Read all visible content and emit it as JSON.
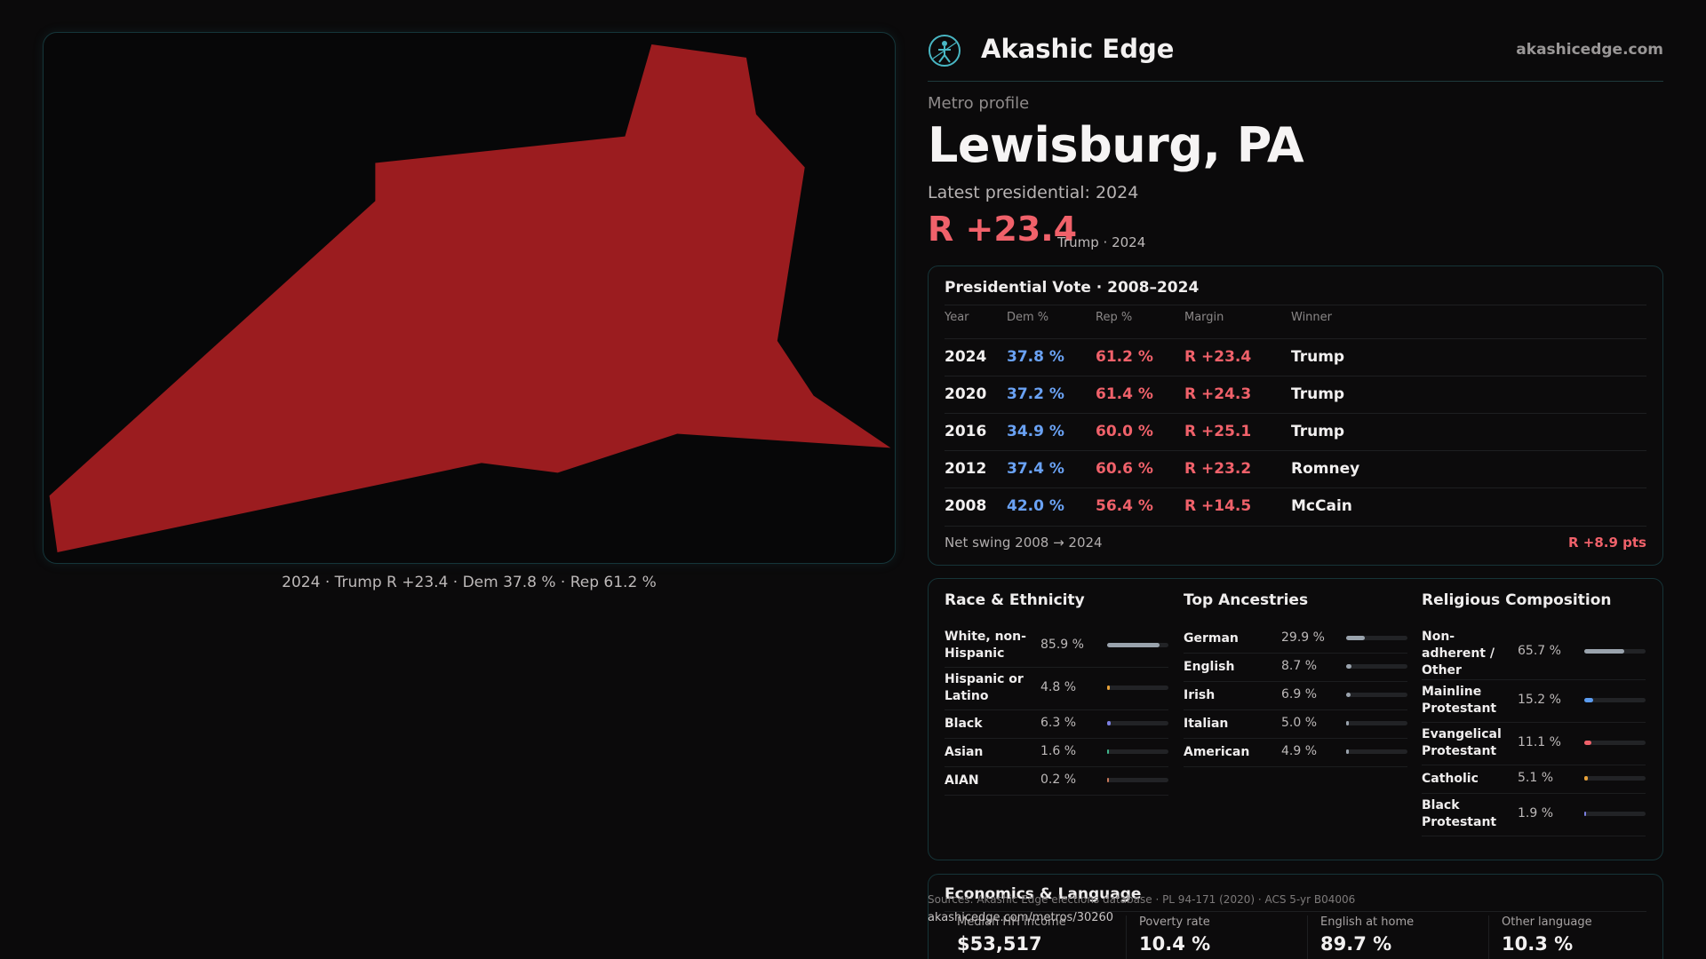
{
  "map": {
    "fill_color": "#9b1c1f",
    "caption": "2024 · Trump R +23.4 · Dem 37.8 % · Rep 61.2 %"
  },
  "header": {
    "brand": "Akashic Edge",
    "site": "akashicedge.com",
    "logo_icon": "compass-person-icon"
  },
  "profile": {
    "kicker": "Metro profile",
    "title": "Lewisburg, PA",
    "latest_label": "Latest presidential: 2024",
    "margin": "R +23.4",
    "margin_sub": "Trump · 2024"
  },
  "presidential": {
    "title": "Presidential Vote · 2008–2024",
    "columns": [
      "Year",
      "Dem %",
      "Rep %",
      "Margin",
      "Winner"
    ],
    "rows": [
      {
        "year": "2024",
        "dem": "37.8 %",
        "rep": "61.2 %",
        "margin": "R +23.4",
        "winner": "Trump"
      },
      {
        "year": "2020",
        "dem": "37.2 %",
        "rep": "61.4 %",
        "margin": "R +24.3",
        "winner": "Trump"
      },
      {
        "year": "2016",
        "dem": "34.9 %",
        "rep": "60.0 %",
        "margin": "R +25.1",
        "winner": "Trump"
      },
      {
        "year": "2012",
        "dem": "37.4 %",
        "rep": "60.6 %",
        "margin": "R +23.2",
        "winner": "Romney"
      },
      {
        "year": "2008",
        "dem": "42.0 %",
        "rep": "56.4 %",
        "margin": "R +14.5",
        "winner": "McCain"
      }
    ],
    "swing_label": "Net swing 2008 → 2024",
    "swing_value": "R +8.9 pts"
  },
  "race": {
    "title": "Race & Ethnicity",
    "items": [
      {
        "label": "White, non-Hispanic",
        "value": "85.9 %",
        "pct": 85.9,
        "color": "#9aa3ad"
      },
      {
        "label": "Hispanic or Latino",
        "value": "4.8 %",
        "pct": 4.8,
        "color": "#e8a23a"
      },
      {
        "label": "Black",
        "value": "6.3 %",
        "pct": 6.3,
        "color": "#7b7fe0"
      },
      {
        "label": "Asian",
        "value": "1.6 %",
        "pct": 1.6,
        "color": "#3fb68b"
      },
      {
        "label": "AIAN",
        "value": "0.2 %",
        "pct": 0.2,
        "color": "#c9785a"
      }
    ]
  },
  "ancestry": {
    "title": "Top Ancestries",
    "items": [
      {
        "label": "German",
        "value": "29.9 %",
        "pct": 29.9,
        "color": "#9aa3ad"
      },
      {
        "label": "English",
        "value": "8.7 %",
        "pct": 8.7,
        "color": "#9aa3ad"
      },
      {
        "label": "Irish",
        "value": "6.9 %",
        "pct": 6.9,
        "color": "#9aa3ad"
      },
      {
        "label": "Italian",
        "value": "5.0 %",
        "pct": 5.0,
        "color": "#9aa3ad"
      },
      {
        "label": "American",
        "value": "4.9 %",
        "pct": 4.9,
        "color": "#9aa3ad"
      }
    ]
  },
  "religion": {
    "title": "Religious Composition",
    "items": [
      {
        "label": "Non-adherent / Other",
        "value": "65.7 %",
        "pct": 65.7,
        "color": "#9aa3ad"
      },
      {
        "label": "Mainline Protestant",
        "value": "15.2 %",
        "pct": 15.2,
        "color": "#5b9cf0"
      },
      {
        "label": "Evangelical Protestant",
        "value": "11.1 %",
        "pct": 11.1,
        "color": "#f0616a"
      },
      {
        "label": "Catholic",
        "value": "5.1 %",
        "pct": 5.1,
        "color": "#e8a23a"
      },
      {
        "label": "Black Protestant",
        "value": "1.9 %",
        "pct": 1.9,
        "color": "#7b7fe0"
      }
    ]
  },
  "economics": {
    "title": "Economics & Language",
    "stats": [
      {
        "label": "Median HH income",
        "value": "$53,517"
      },
      {
        "label": "Poverty rate",
        "value": "10.4 %"
      },
      {
        "label": "English at home",
        "value": "89.7 %"
      },
      {
        "label": "Other language",
        "value": "10.3 %"
      }
    ]
  },
  "footer": {
    "sources": "Sources: Akashic Edge elections database · PL 94-171 (2020) · ACS 5-yr B04006",
    "url": "akashicedge.com/metros/30260"
  }
}
